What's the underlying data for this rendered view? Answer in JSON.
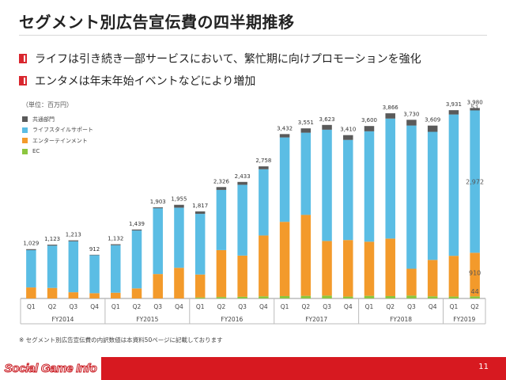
{
  "slide": {
    "title": "セグメント別広告宣伝費の四半期推移",
    "bullets": [
      "ライフは引き続き一部サービスにおいて、繁忙期に向けプロモーションを強化",
      "エンタメは年末年始イベントなどにより増加"
    ],
    "unit_label": "（単位：百万円）",
    "footnote": "※ セグメント別広告宣伝費の内訳数値は本資料50ページに記載しております",
    "page_number": "11",
    "logo_text": "Social Game Info"
  },
  "chart_data": {
    "type": "bar",
    "stacked": true,
    "categories": [
      "Q1",
      "Q2",
      "Q3",
      "Q4",
      "Q1",
      "Q2",
      "Q3",
      "Q4",
      "Q1",
      "Q2",
      "Q3",
      "Q4",
      "Q1",
      "Q2",
      "Q3",
      "Q4",
      "Q1",
      "Q2",
      "Q3",
      "Q4",
      "Q1",
      "Q2"
    ],
    "groups": [
      {
        "label": "FY2014",
        "count": 4
      },
      {
        "label": "FY2015",
        "count": 4
      },
      {
        "label": "FY2016",
        "count": 4
      },
      {
        "label": "FY2017",
        "count": 4
      },
      {
        "label": "FY2018",
        "count": 4
      },
      {
        "label": "FY2019",
        "count": 2
      }
    ],
    "totals": [
      "1,029",
      "1,123",
      "1,213",
      "912",
      "1,132",
      "1,439",
      "1,903",
      "1,955",
      "1,817",
      "2,326",
      "2,433",
      "2,758",
      "3,432",
      "3,551",
      "3,623",
      "3,410",
      "3,600",
      "3,866",
      "3,730",
      "3,609",
      "3,931",
      "3,980"
    ],
    "series": [
      {
        "name": "EC",
        "color": "#8cc63f",
        "values": [
          0,
          0,
          0,
          0,
          0,
          0,
          0,
          0,
          20,
          30,
          35,
          45,
          50,
          55,
          60,
          40,
          55,
          50,
          60,
          45,
          40,
          44
        ]
      },
      {
        "name": "エンターテインメント",
        "color": "#f39a2b",
        "values": [
          230,
          220,
          130,
          110,
          120,
          210,
          510,
          640,
          480,
          980,
          860,
          1270,
          1550,
          1690,
          1140,
          1180,
          1130,
          1200,
          560,
          760,
          850,
          910
        ]
      },
      {
        "name": "ライフスタイルサポート",
        "color": "#5bbde4",
        "values": [
          779,
          883,
          1063,
          792,
          992,
          1209,
          1373,
          1255,
          1267,
          1256,
          1478,
          1383,
          1762,
          1716,
          2323,
          2090,
          2305,
          2506,
          2990,
          2674,
          2951,
          2972
        ]
      },
      {
        "name": "共通部門",
        "color": "#5a5a5a",
        "values": [
          20,
          20,
          20,
          10,
          20,
          20,
          20,
          60,
          50,
          60,
          60,
          60,
          70,
          90,
          100,
          100,
          110,
          110,
          120,
          130,
          90,
          51
        ]
      }
    ],
    "legend_order": [
      "共通部門",
      "ライフスタイルサポート",
      "エンターテインメント",
      "EC"
    ],
    "last_bar_labels": {
      "共通部門": "51",
      "ライフスタイルサポート": "2,972",
      "エンターテインメント": "910",
      "EC": "44"
    },
    "ylim": [
      0,
      4000
    ],
    "grid": false,
    "legend_position": "top-left"
  }
}
